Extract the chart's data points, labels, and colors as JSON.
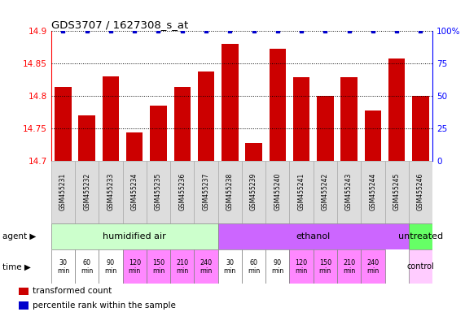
{
  "title": "GDS3707 / 1627308_s_at",
  "samples": [
    "GSM455231",
    "GSM455232",
    "GSM455233",
    "GSM455234",
    "GSM455235",
    "GSM455236",
    "GSM455237",
    "GSM455238",
    "GSM455239",
    "GSM455240",
    "GSM455241",
    "GSM455242",
    "GSM455243",
    "GSM455244",
    "GSM455245",
    "GSM455246"
  ],
  "values": [
    14.814,
    14.77,
    14.83,
    14.743,
    14.785,
    14.814,
    14.838,
    14.88,
    14.727,
    14.873,
    14.829,
    14.8,
    14.829,
    14.778,
    14.858,
    14.8
  ],
  "percentile": [
    100,
    100,
    100,
    100,
    100,
    100,
    100,
    100,
    100,
    100,
    100,
    100,
    100,
    100,
    100,
    100
  ],
  "ylim": [
    14.7,
    14.9
  ],
  "yticks": [
    14.7,
    14.75,
    14.8,
    14.85,
    14.9
  ],
  "right_yticks": [
    0,
    25,
    50,
    75,
    100
  ],
  "right_ylabels": [
    "0",
    "25",
    "50",
    "75",
    "100%"
  ],
  "bar_color": "#cc0000",
  "dot_color": "#0000cc",
  "agent_groups": [
    {
      "label": "humidified air",
      "start": 0,
      "end": 7,
      "color": "#ccffcc"
    },
    {
      "label": "ethanol",
      "start": 7,
      "end": 15,
      "color": "#cc66ff"
    },
    {
      "label": "untreated",
      "start": 15,
      "end": 16,
      "color": "#66ff66"
    }
  ],
  "time_labels": [
    "30\nmin",
    "60\nmin",
    "90\nmin",
    "120\nmin",
    "150\nmin",
    "210\nmin",
    "240\nmin",
    "30\nmin",
    "60\nmin",
    "90\nmin",
    "120\nmin",
    "150\nmin",
    "210\nmin",
    "240\nmin"
  ],
  "time_colors": [
    "#ffffff",
    "#ffffff",
    "#ffffff",
    "#ff88ff",
    "#ff88ff",
    "#ff88ff",
    "#ff88ff",
    "#ffffff",
    "#ffffff",
    "#ffffff",
    "#ff88ff",
    "#ff88ff",
    "#ff88ff",
    "#ff88ff"
  ],
  "control_label": "control",
  "control_color": "#ffccff",
  "background_color": "#ffffff",
  "label_row1": "agent",
  "label_row2": "time",
  "legend1": "transformed count",
  "legend2": "percentile rank within the sample",
  "sample_box_color": "#dddddd",
  "sample_box_edge": "#aaaaaa"
}
